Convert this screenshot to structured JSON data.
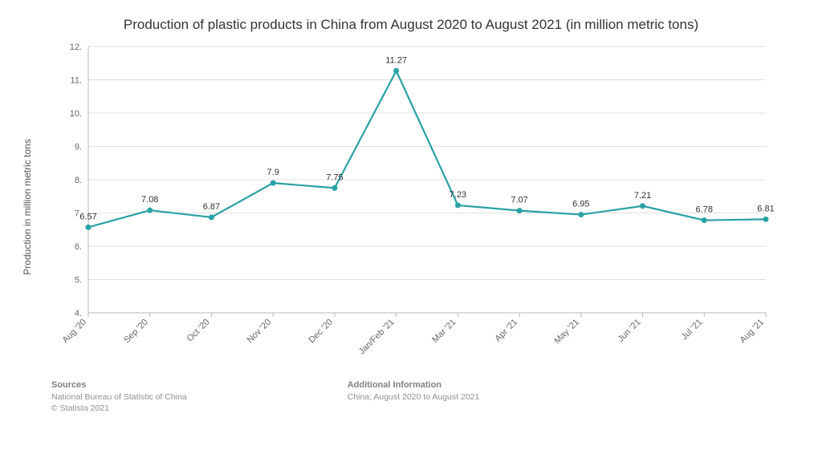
{
  "title": "Production of plastic products in China from August 2020 to August 2021 (in million metric tons)",
  "y_axis_label": "Production in million metric tons",
  "chart": {
    "type": "line",
    "categories": [
      "Aug '20",
      "Sep '20",
      "Oct '20",
      "Nov '20",
      "Dec '20",
      "Jan/Feb '21",
      "Mar '21",
      "Apr '21",
      "May '21",
      "Jun '21",
      "Jul '21",
      "Aug '21"
    ],
    "values": [
      6.57,
      7.08,
      6.87,
      7.9,
      7.75,
      11.27,
      7.23,
      7.07,
      6.95,
      7.21,
      6.78,
      6.81
    ],
    "ylim": [
      4,
      12
    ],
    "ytick_step": 1,
    "line_color": "#2aa1a5",
    "marker_color": "#2aa1a5",
    "marker_radius": 3.5,
    "line_width": 2.2,
    "grid_color": "#e0e0e0",
    "axis_color": "#b8b8b8",
    "background_color": "#ffffff",
    "label_fontsize": 11,
    "title_fontsize": 17
  },
  "footer": {
    "sources_head": "Sources",
    "sources_lines": [
      "National Bureau of Statistic of China",
      "© Statista 2021"
    ],
    "addl_head": "Additional Information",
    "addl_lines": [
      "China; August 2020 to August 2021"
    ]
  }
}
